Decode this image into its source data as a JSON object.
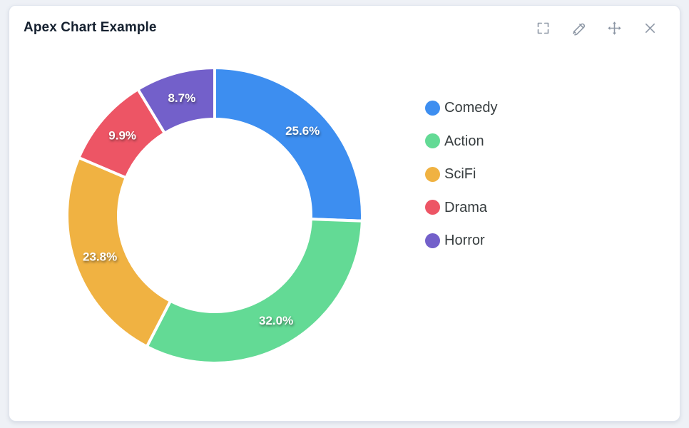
{
  "header": {
    "title": "Apex Chart Example",
    "actions": [
      {
        "name": "fullscreen",
        "icon": "fullscreen-icon"
      },
      {
        "name": "edit",
        "icon": "pencil-icon"
      },
      {
        "name": "move",
        "icon": "move-icon"
      },
      {
        "name": "close",
        "icon": "close-icon"
      }
    ]
  },
  "chart_data": {
    "type": "pie",
    "subtype": "donut",
    "title": "Apex Chart Example",
    "labels": [
      "Comedy",
      "Action",
      "SciFi",
      "Drama",
      "Horror"
    ],
    "values": [
      25.6,
      32.0,
      23.8,
      9.9,
      8.7
    ],
    "data_labels": [
      "25.6%",
      "32.0%",
      "23.8%",
      "9.9%",
      "8.7%"
    ],
    "colors": [
      "#3d8ef0",
      "#63da95",
      "#f0b242",
      "#ed5565",
      "#7360ca"
    ],
    "total": 100.0,
    "start_angle_deg": 0,
    "direction": "clockwise",
    "legend": {
      "position": "right",
      "entries": [
        "Comedy",
        "Action",
        "SciFi",
        "Drama",
        "Horror"
      ]
    }
  }
}
